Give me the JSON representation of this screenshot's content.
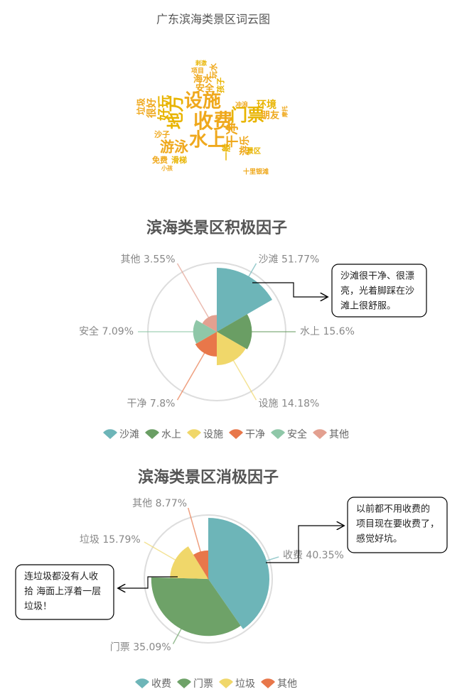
{
  "wordcloud": {
    "title": "广东滨海类景区词云图",
    "words": [
      "收费",
      "门票",
      "水上",
      "设施",
      "地方",
      "游泳",
      "干净",
      "好玩",
      "很好",
      "垃圾",
      "环境",
      "朋友",
      "游乐",
      "一般",
      "沙子",
      "免费",
      "滑梯",
      "安全",
      "海水",
      "孩子",
      "玩水",
      "项目",
      "刺激",
      "冲浪",
      "小孩",
      "景区",
      "十里银滩",
      "摩托"
    ]
  },
  "chart_data": [
    {
      "type": "pie",
      "rose": "area",
      "title": "滨海类景区积极因子",
      "categories": [
        "沙滩",
        "水上",
        "设施",
        "干净",
        "安全",
        "其他"
      ],
      "values": [
        51.77,
        15.6,
        14.18,
        7.8,
        7.09,
        3.55
      ],
      "value_labels": [
        "51.77%",
        "15.6%",
        "14.18%",
        "7.8%",
        "7.09%",
        "3.55%"
      ],
      "colors": [
        "#6db5b8",
        "#6a9e64",
        "#f0d76a",
        "#e8774a",
        "#8fc7a8",
        "#e3a090"
      ],
      "annotations": [
        [
          "沙滩很干净、很漂",
          "亮，光着脚踩在沙",
          "滩上很舒服。"
        ]
      ]
    },
    {
      "type": "pie",
      "rose": "radius",
      "title": "滨海类景区消极因子",
      "categories": [
        "收费",
        "门票",
        "垃圾",
        "其他"
      ],
      "values": [
        40.35,
        35.09,
        15.79,
        8.77
      ],
      "value_labels": [
        "40.35%",
        "35.09%",
        "15.79%",
        "8.77%"
      ],
      "colors": [
        "#6db5b8",
        "#6ea268",
        "#f0d76a",
        "#e8774a"
      ],
      "annotations": [
        [
          "以前都不用收费的",
          "项目现在要收费了，",
          "感觉好坑。"
        ],
        [
          "连垃圾都没有人收",
          "拾 海面上浮着一层",
          "垃圾！"
        ]
      ]
    }
  ]
}
